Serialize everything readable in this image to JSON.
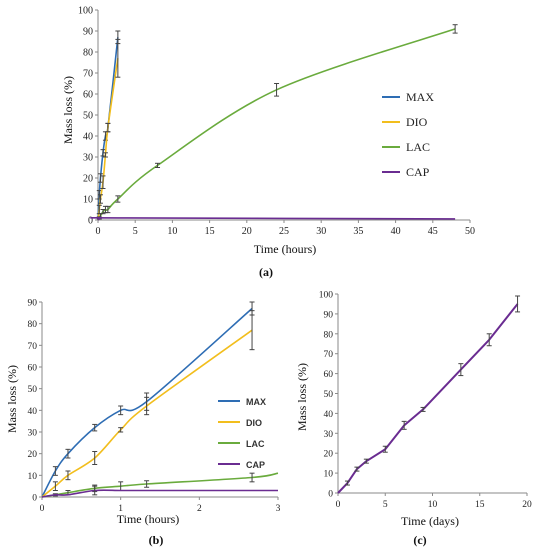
{
  "colors": {
    "MAX": "#2e6db4",
    "DIO": "#f2be1d",
    "LAC": "#6aab3d",
    "CAP": "#6a2c91",
    "errbar": "#444444",
    "axis": "#8a8a8a"
  },
  "chart_data": [
    {
      "type": "line",
      "panel_label": "(a)",
      "xlabel": "Time (hours)",
      "ylabel": "Mass loss (%)",
      "xlim": [
        0,
        50
      ],
      "ylim": [
        0,
        100
      ],
      "xticks": [
        0,
        5,
        10,
        15,
        20,
        25,
        30,
        35,
        40,
        45,
        50
      ],
      "yticks": [
        0,
        10,
        20,
        30,
        40,
        50,
        60,
        70,
        80,
        90,
        100
      ],
      "legend_position": "right",
      "series": [
        {
          "name": "MAX",
          "x": [
            0,
            0.17,
            0.33,
            0.67,
            1,
            1.33,
            2.67
          ],
          "y": [
            0,
            12,
            20,
            32,
            40,
            44,
            87
          ],
          "err": [
            0,
            2,
            2,
            1.5,
            2,
            2,
            3
          ]
        },
        {
          "name": "DIO",
          "x": [
            0,
            0.17,
            0.33,
            0.67,
            1,
            1.33,
            2.67
          ],
          "y": [
            0,
            5,
            10,
            18,
            31,
            44,
            77
          ],
          "err": [
            0,
            2,
            2,
            3,
            1,
            2,
            9
          ]
        },
        {
          "name": "LAC",
          "x": [
            0,
            0.17,
            0.33,
            0.67,
            1,
            1.33,
            2.67,
            8,
            24,
            48
          ],
          "y": [
            0,
            1,
            2,
            4,
            5,
            5,
            10,
            26,
            62,
            91
          ],
          "err": [
            0,
            0.5,
            1,
            1,
            1.5,
            1.5,
            1.5,
            1,
            3,
            2
          ]
        },
        {
          "name": "CAP",
          "x": [
            0,
            0.17,
            0.33,
            0.67,
            1,
            1.33,
            2.67,
            48
          ],
          "y": [
            0,
            0.5,
            1,
            1,
            1,
            1,
            1,
            0.5
          ],
          "err": [
            0,
            0,
            0,
            0,
            0,
            0,
            0,
            0
          ]
        }
      ]
    },
    {
      "type": "line",
      "panel_label": "(b)",
      "xlabel": "Time (hours)",
      "ylabel": "Mass loss (%)",
      "xlim": [
        0,
        3
      ],
      "ylim": [
        0,
        90
      ],
      "xticks": [
        0,
        1,
        2,
        3
      ],
      "yticks": [
        0,
        10,
        20,
        30,
        40,
        50,
        60,
        70,
        80,
        90
      ],
      "legend_position": "right",
      "series": [
        {
          "name": "MAX",
          "x": [
            0,
            0.17,
            0.33,
            0.67,
            1,
            1.33,
            2.67
          ],
          "y": [
            0,
            12,
            20,
            32,
            40,
            44,
            87
          ],
          "err": [
            0,
            2,
            2,
            1.5,
            2,
            4,
            3
          ]
        },
        {
          "name": "DIO",
          "x": [
            0,
            0.17,
            0.33,
            0.67,
            1,
            1.33,
            2.67
          ],
          "y": [
            0,
            5,
            10,
            18,
            31,
            42,
            77
          ],
          "err": [
            0,
            2,
            2,
            3,
            1,
            4,
            9
          ]
        },
        {
          "name": "LAC",
          "x": [
            0,
            0.17,
            0.33,
            0.67,
            1,
            1.33,
            2.67,
            3
          ],
          "y": [
            0,
            1,
            2,
            4,
            5,
            6,
            9,
            11
          ],
          "err": [
            0,
            0.5,
            1,
            1.5,
            2,
            1.5,
            2,
            0
          ]
        },
        {
          "name": "CAP",
          "x": [
            0,
            0.17,
            0.33,
            0.67,
            1,
            1.33,
            2.67,
            3
          ],
          "y": [
            0,
            1,
            1,
            3,
            3,
            3,
            3,
            3
          ],
          "err": [
            0,
            0,
            0,
            2,
            0,
            0,
            0,
            0
          ]
        }
      ]
    },
    {
      "type": "line",
      "panel_label": "(c)",
      "xlabel": "Time (days)",
      "ylabel": "Mass loss (%)",
      "xlim": [
        0,
        20
      ],
      "ylim": [
        0,
        100
      ],
      "xticks": [
        0,
        5,
        10,
        15,
        20
      ],
      "yticks": [
        0,
        10,
        20,
        30,
        40,
        50,
        60,
        70,
        80,
        90,
        100
      ],
      "series": [
        {
          "name": "CAP",
          "x": [
            0,
            1,
            2,
            3,
            5,
            7,
            9,
            13,
            16,
            19
          ],
          "y": [
            0,
            5,
            12,
            16,
            22,
            34,
            42,
            62,
            77,
            95
          ],
          "err": [
            0,
            1,
            1,
            1,
            1.5,
            2,
            1,
            3,
            3,
            4
          ]
        }
      ]
    }
  ]
}
